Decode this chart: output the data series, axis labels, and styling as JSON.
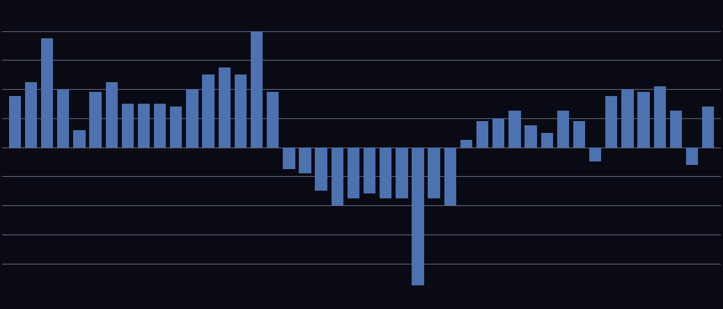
{
  "values": [
    3.5,
    4.5,
    7.5,
    4.0,
    1.2,
    3.8,
    4.5,
    3.0,
    3.0,
    3.0,
    2.8,
    4.0,
    5.0,
    5.5,
    5.0,
    8.0,
    3.8,
    -1.5,
    -1.8,
    -3.0,
    -4.0,
    -3.5,
    -3.2,
    -3.5,
    -3.5,
    -9.5,
    -3.5,
    -4.0,
    0.5,
    1.8,
    2.0,
    2.5,
    1.5,
    1.0,
    2.5,
    1.8,
    -1.0,
    3.5,
    4.0,
    3.8,
    4.2,
    2.5,
    -1.2,
    2.8
  ],
  "bar_color": "#4C72B0",
  "background_color": "#0a0a14",
  "grid_color": "#666680",
  "ylim": [
    -11,
    10
  ],
  "yticks": [
    -8,
    -6,
    -4,
    -2,
    0,
    2,
    4,
    6,
    8
  ],
  "figsize": [
    10.38,
    4.44
  ]
}
